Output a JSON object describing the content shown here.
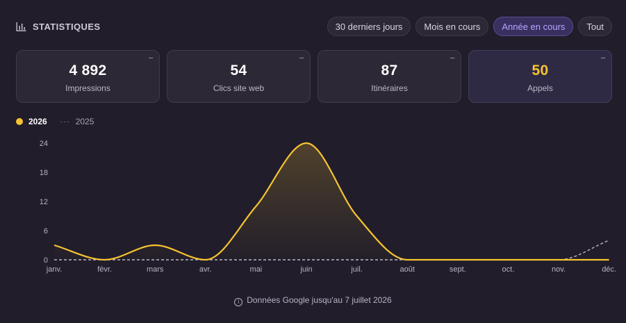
{
  "header": {
    "title": "STATISTIQUES",
    "icon": "bar-chart-icon",
    "filters": [
      {
        "label": "30 derniers jours",
        "active": false
      },
      {
        "label": "Mois en cours",
        "active": false
      },
      {
        "label": "Année en cours",
        "active": true
      },
      {
        "label": "Tout",
        "active": false
      }
    ]
  },
  "cards": [
    {
      "value": "4 892",
      "label": "Impressions",
      "toggle": "−",
      "highlight": false
    },
    {
      "value": "54",
      "label": "Clics site web",
      "toggle": "−",
      "highlight": false
    },
    {
      "value": "87",
      "label": "Itinéraires",
      "toggle": "−",
      "highlight": false
    },
    {
      "value": "50",
      "label": "Appels",
      "toggle": "−",
      "highlight": true
    }
  ],
  "legend": {
    "current": "2026",
    "previous": "2025"
  },
  "colors": {
    "accent": "#f7c331",
    "active_filter": "#b6a4ff",
    "background": "#211d2a",
    "previous_line": "#bdb8c8"
  },
  "chart_data": {
    "type": "line",
    "categories": [
      "janv.",
      "févr.",
      "mars",
      "avr.",
      "mai",
      "juin",
      "juil.",
      "août",
      "sept.",
      "oct.",
      "nov.",
      "déc."
    ],
    "series": [
      {
        "name": "2026",
        "values": [
          3,
          0,
          3,
          0,
          11,
          24,
          9,
          0,
          0,
          0,
          0,
          0
        ],
        "style": "solid",
        "fill": "gradient"
      },
      {
        "name": "2025",
        "values": [
          0,
          0,
          0,
          0,
          0,
          0,
          0,
          0,
          0,
          0,
          0,
          4
        ],
        "style": "dashed"
      }
    ],
    "yticks": [
      0,
      6,
      12,
      18,
      24
    ],
    "ylim": [
      0,
      24
    ],
    "grid": false,
    "legend_position": "top-left"
  },
  "footnote": "Données Google jusqu'au 7 juillet 2026",
  "footnote_icon": "info-icon"
}
